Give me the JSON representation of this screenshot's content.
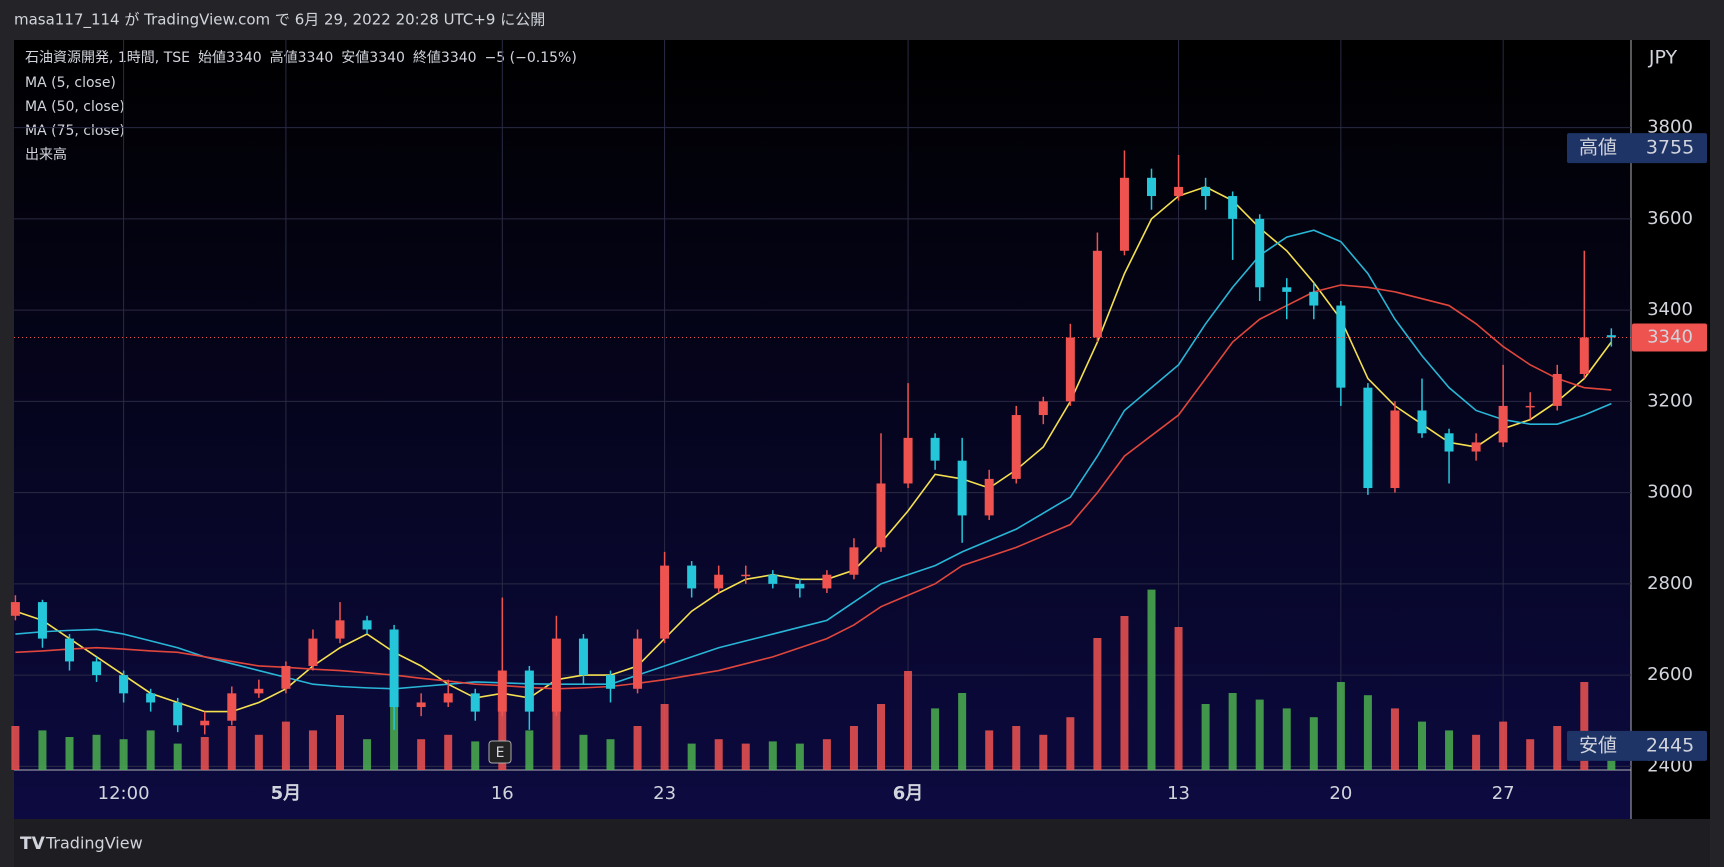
{
  "chart_data": {
    "type": "candlestick",
    "header": "masa117_114 が TradingView.com で 6月 29, 2022 20:28 UTC+9 に公開",
    "symbol": "石油資源開発, 1時間, TSE",
    "ohlc": [
      {
        "label": "始値",
        "value": 3340
      },
      {
        "label": "高値",
        "value": 3340
      },
      {
        "label": "安値",
        "value": 3340
      },
      {
        "label": "終値",
        "value": 3340
      }
    ],
    "change_label": "−5 (−0.15%)",
    "volume_label": "出来高",
    "currency": "JPY",
    "earnings_marker": "E",
    "brand": "TradingView",
    "high_marker": {
      "label": "高値",
      "value": 3755
    },
    "low_marker": {
      "label": "安値",
      "value": 2445
    },
    "last_price": 3340,
    "up_color": "#ef5350",
    "down_color": "#26c6da",
    "volume_up_color": "#ef5350",
    "volume_down_color": "#4caf50",
    "ylim": [
      2392,
      3992
    ],
    "yticks": [
      2400,
      2600,
      2800,
      3000,
      3200,
      3400,
      3600,
      3800
    ],
    "grid": true,
    "categories": [
      null,
      null,
      null,
      null,
      "12:00",
      null,
      null,
      null,
      null,
      null,
      "5月",
      null,
      null,
      null,
      null,
      null,
      null,
      null,
      "16",
      null,
      null,
      null,
      null,
      null,
      "23",
      null,
      null,
      null,
      null,
      null,
      null,
      null,
      null,
      "6月",
      null,
      null,
      null,
      null,
      null,
      null,
      null,
      null,
      null,
      "13",
      null,
      null,
      null,
      null,
      null,
      "20",
      null,
      null,
      null,
      null,
      null,
      "27",
      null,
      null,
      null,
      null
    ],
    "candles": [
      [
        2730,
        2775,
        2720,
        2760
      ],
      [
        2760,
        2765,
        2660,
        2680
      ],
      [
        2680,
        2690,
        2610,
        2630
      ],
      [
        2630,
        2640,
        2585,
        2600
      ],
      [
        2600,
        2610,
        2540,
        2560
      ],
      [
        2560,
        2570,
        2520,
        2540
      ],
      [
        2540,
        2550,
        2475,
        2490
      ],
      [
        2490,
        2520,
        2470,
        2500
      ],
      [
        2500,
        2575,
        2490,
        2560
      ],
      [
        2560,
        2590,
        2550,
        2570
      ],
      [
        2570,
        2630,
        2560,
        2620
      ],
      [
        2620,
        2700,
        2610,
        2680
      ],
      [
        2680,
        2760,
        2670,
        2720
      ],
      [
        2720,
        2730,
        2690,
        2700
      ],
      [
        2700,
        2710,
        2480,
        2530
      ],
      [
        2530,
        2560,
        2510,
        2540
      ],
      [
        2540,
        2590,
        2530,
        2560
      ],
      [
        2560,
        2570,
        2500,
        2520
      ],
      [
        2520,
        2770,
        2510,
        2610
      ],
      [
        2610,
        2620,
        2480,
        2520
      ],
      [
        2520,
        2730,
        2510,
        2680
      ],
      [
        2680,
        2690,
        2580,
        2600
      ],
      [
        2600,
        2610,
        2540,
        2570
      ],
      [
        2570,
        2700,
        2560,
        2680
      ],
      [
        2680,
        2870,
        2670,
        2840
      ],
      [
        2840,
        2850,
        2770,
        2790
      ],
      [
        2790,
        2840,
        2780,
        2820
      ],
      [
        2820,
        2840,
        2800,
        2820
      ],
      [
        2820,
        2830,
        2790,
        2800
      ],
      [
        2800,
        2810,
        2770,
        2790
      ],
      [
        2790,
        2830,
        2780,
        2820
      ],
      [
        2820,
        2900,
        2810,
        2880
      ],
      [
        2880,
        3130,
        2870,
        3020
      ],
      [
        3020,
        3240,
        3010,
        3120
      ],
      [
        3120,
        3130,
        3050,
        3070
      ],
      [
        3070,
        3120,
        2890,
        2950
      ],
      [
        2950,
        3050,
        2940,
        3030
      ],
      [
        3030,
        3190,
        3020,
        3170
      ],
      [
        3170,
        3210,
        3150,
        3200
      ],
      [
        3200,
        3370,
        3190,
        3340
      ],
      [
        3340,
        3570,
        3330,
        3530
      ],
      [
        3530,
        3750,
        3520,
        3690
      ],
      [
        3690,
        3710,
        3620,
        3650
      ],
      [
        3650,
        3740,
        3640,
        3670
      ],
      [
        3670,
        3690,
        3620,
        3650
      ],
      [
        3650,
        3660,
        3510,
        3600
      ],
      [
        3600,
        3610,
        3420,
        3450
      ],
      [
        3450,
        3470,
        3380,
        3440
      ],
      [
        3440,
        3460,
        3380,
        3410
      ],
      [
        3410,
        3420,
        3190,
        3230
      ],
      [
        3230,
        3240,
        2995,
        3010
      ],
      [
        3010,
        3200,
        3000,
        3180
      ],
      [
        3180,
        3250,
        3120,
        3130
      ],
      [
        3130,
        3140,
        3020,
        3090
      ],
      [
        3090,
        3130,
        3070,
        3110
      ],
      [
        3110,
        3280,
        3100,
        3190
      ],
      [
        3190,
        3220,
        3160,
        3190
      ],
      [
        3190,
        3280,
        3180,
        3260
      ],
      [
        3260,
        3530,
        3250,
        3340
      ],
      [
        3345,
        3360,
        3320,
        3340
      ]
    ],
    "ma": [
      {
        "name": "MA (5, close)",
        "color": "#f5e050",
        "values": [
          2740,
          2720,
          2680,
          2640,
          2600,
          2560,
          2540,
          2520,
          2520,
          2540,
          2570,
          2620,
          2660,
          2690,
          2650,
          2620,
          2580,
          2550,
          2560,
          2550,
          2590,
          2600,
          2600,
          2620,
          2680,
          2740,
          2780,
          2810,
          2820,
          2810,
          2810,
          2830,
          2890,
          2960,
          3040,
          3030,
          3010,
          3050,
          3100,
          3200,
          3330,
          3480,
          3600,
          3650,
          3670,
          3640,
          3580,
          3530,
          3460,
          3380,
          3250,
          3190,
          3150,
          3110,
          3100,
          3140,
          3160,
          3200,
          3250,
          3330
        ]
      },
      {
        "name": "MA (50, close)",
        "color": "#29b6d6",
        "values": [
          2690,
          2695,
          2698,
          2700,
          2690,
          2675,
          2660,
          2640,
          2625,
          2610,
          2595,
          2580,
          2575,
          2572,
          2570,
          2575,
          2580,
          2585,
          2583,
          2581,
          2580,
          2580,
          2580,
          2600,
          2620,
          2640,
          2660,
          2675,
          2690,
          2705,
          2720,
          2760,
          2800,
          2820,
          2840,
          2870,
          2895,
          2920,
          2955,
          2990,
          3080,
          3180,
          3230,
          3280,
          3370,
          3450,
          3520,
          3560,
          3575,
          3550,
          3480,
          3380,
          3300,
          3230,
          3180,
          3160,
          3150,
          3150,
          3170,
          3195
        ]
      },
      {
        "name": "MA (75, close)",
        "color": "#e0463c",
        "values": [
          2650,
          2653,
          2657,
          2660,
          2657,
          2653,
          2650,
          2640,
          2630,
          2620,
          2617,
          2613,
          2610,
          2605,
          2600,
          2593,
          2587,
          2580,
          2577,
          2573,
          2570,
          2572,
          2575,
          2582,
          2590,
          2600,
          2610,
          2625,
          2640,
          2660,
          2680,
          2710,
          2750,
          2775,
          2800,
          2840,
          2860,
          2880,
          2905,
          2930,
          3000,
          3080,
          3125,
          3170,
          3250,
          3330,
          3380,
          3410,
          3440,
          3455,
          3450,
          3440,
          3425,
          3410,
          3370,
          3320,
          3280,
          3250,
          3230,
          3225
        ]
      }
    ],
    "volume": {
      "vlim": [
        0,
        100
      ],
      "values": [
        20,
        18,
        15,
        16,
        14,
        18,
        12,
        15,
        20,
        16,
        22,
        18,
        25,
        14,
        30,
        14,
        16,
        13,
        40,
        18,
        28,
        16,
        14,
        20,
        30,
        12,
        14,
        12,
        13,
        12,
        14,
        20,
        30,
        45,
        28,
        35,
        18,
        20,
        16,
        24,
        60,
        70,
        82,
        65,
        30,
        35,
        32,
        28,
        24,
        40,
        34,
        28,
        22,
        18,
        16,
        22,
        14,
        20,
        40,
        12
      ]
    }
  }
}
